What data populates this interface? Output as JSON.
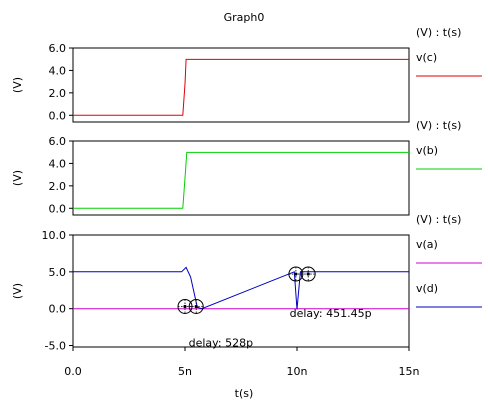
{
  "window_title": "Graph0",
  "xlabel": "t(s)",
  "xticks": [
    {
      "v": 0,
      "label": "0.0"
    },
    {
      "v": 5,
      "label": "5n"
    },
    {
      "v": 10,
      "label": "10n"
    },
    {
      "v": 15,
      "label": "15n"
    }
  ],
  "chart_data": [
    {
      "type": "line",
      "ylabel": "(V)",
      "legend_header": "(V) : t(s)",
      "xlim": [
        0,
        15
      ],
      "ylim": [
        -0.6,
        6.0
      ],
      "yticks": [
        {
          "v": 6.0,
          "label": "6.0"
        },
        {
          "v": 4.0,
          "label": "4.0"
        },
        {
          "v": 2.0,
          "label": "2.0"
        },
        {
          "v": 0.0,
          "label": "0.0"
        }
      ],
      "series": [
        {
          "name": "v(c)",
          "color": "#e00000",
          "points": [
            [
              0,
              0
            ],
            [
              4.9,
              0
            ],
            [
              5.0,
              2.8
            ],
            [
              5.05,
              4.98
            ],
            [
              15,
              4.98
            ]
          ]
        }
      ]
    },
    {
      "type": "line",
      "ylabel": "(V)",
      "legend_header": "(V) : t(s)",
      "xlim": [
        0,
        15
      ],
      "ylim": [
        -0.6,
        6.0
      ],
      "yticks": [
        {
          "v": 6.0,
          "label": "6.0"
        },
        {
          "v": 4.0,
          "label": "4.0"
        },
        {
          "v": 2.0,
          "label": "2.0"
        },
        {
          "v": 0.0,
          "label": "0.0"
        }
      ],
      "series": [
        {
          "name": "v(b)",
          "color": "#00d000",
          "points": [
            [
              0,
              0
            ],
            [
              4.9,
              0
            ],
            [
              5.0,
              2.7
            ],
            [
              5.08,
              4.98
            ],
            [
              15,
              4.98
            ]
          ]
        }
      ]
    },
    {
      "type": "line",
      "ylabel": "(V)",
      "legend_header": "(V) : t(s)",
      "xlim": [
        0,
        15
      ],
      "ylim": [
        -5.2,
        10.0
      ],
      "yticks": [
        {
          "v": 10.0,
          "label": "10.0"
        },
        {
          "v": 5.0,
          "label": "5.0"
        },
        {
          "v": 0.0,
          "label": "0.0"
        },
        {
          "v": -5.0,
          "label": "-5.0"
        }
      ],
      "series": [
        {
          "name": "v(a)",
          "color": "#d000d0",
          "points": [
            [
              0,
              0
            ],
            [
              15,
              0
            ]
          ]
        },
        {
          "name": "v(d)",
          "color": "#0000c0",
          "points": [
            [
              0,
              5.0
            ],
            [
              4.85,
              5.0
            ],
            [
              5.05,
              5.6
            ],
            [
              5.25,
              4.3
            ],
            [
              5.55,
              0.2
            ],
            [
              5.75,
              0.0
            ],
            [
              9.88,
              5.0
            ],
            [
              10.0,
              -0.1
            ],
            [
              10.15,
              5.0
            ],
            [
              15,
              5.0
            ]
          ]
        }
      ],
      "annotations": [
        {
          "text": "delay: 528p",
          "x": 6.6,
          "y": -4.6
        },
        {
          "text": "delay: 451.45p",
          "x": 11.5,
          "y": -0.6
        }
      ],
      "markers": [
        {
          "x": 5.0,
          "y": 0.3
        },
        {
          "x": 5.5,
          "y": 0.3
        },
        {
          "x": 9.95,
          "y": 4.7
        },
        {
          "x": 10.5,
          "y": 4.7
        }
      ]
    }
  ]
}
